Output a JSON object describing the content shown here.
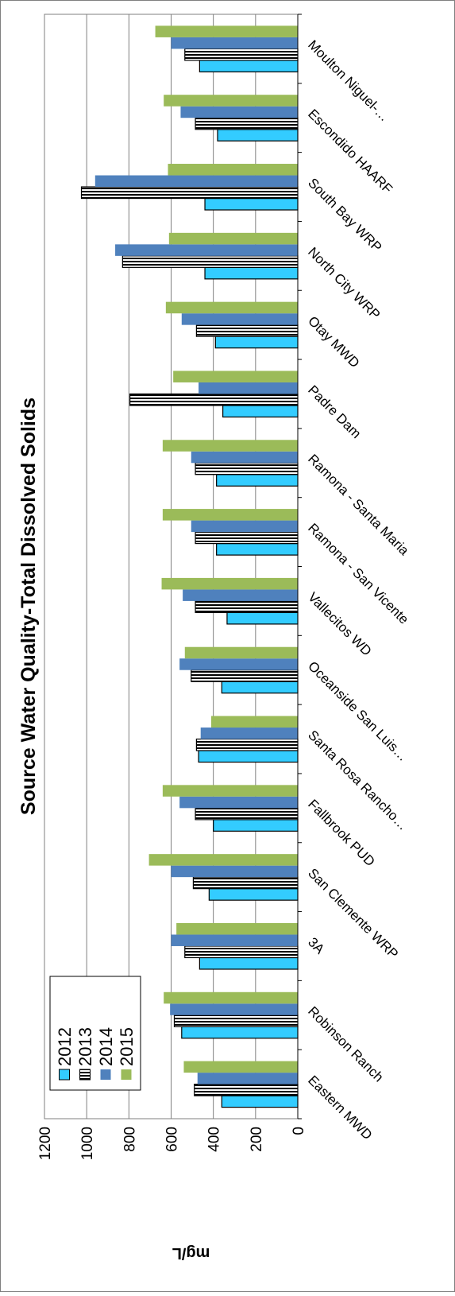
{
  "chart_data": {
    "type": "bar",
    "orientation": "rotated-90-clockwise",
    "title": "Source Water Quality-Total Dissolved Solids",
    "xlabel": "",
    "ylabel": "mg/L",
    "ylim": [
      0,
      1200
    ],
    "yticks": [
      0,
      200,
      400,
      600,
      800,
      1000,
      1200
    ],
    "grid": true,
    "legend_position": "bottom-left",
    "categories": [
      "Eastern MWD",
      "Robinson Ranch",
      "3A",
      "San Clemente WRP",
      "Fallbrook PUD",
      "Santa Rosa Rancho…",
      "Oceanside San Luis…",
      "Vallecitos WD",
      "Ramona - San Vicente",
      "Ramona - Santa Maria",
      "Padre Dam",
      "Otay MWD",
      "North City WRP",
      "South Bay WRP",
      "Escondido HAARF",
      "Moulton Niguel-…"
    ],
    "series": [
      {
        "name": "2012",
        "color": "#33ccff",
        "pattern": "solid",
        "values": [
          360,
          550,
          465,
          420,
          400,
          470,
          360,
          335,
          385,
          385,
          355,
          390,
          440,
          440,
          380,
          465
        ]
      },
      {
        "name": "2013",
        "color": "#000000",
        "pattern": "striped",
        "values": [
          490,
          585,
          535,
          495,
          485,
          480,
          505,
          485,
          485,
          485,
          795,
          480,
          830,
          1025,
          485,
          535
        ]
      },
      {
        "name": "2014",
        "color": "#4f81bd",
        "pattern": "solid",
        "values": [
          475,
          605,
          600,
          600,
          560,
          460,
          560,
          545,
          505,
          505,
          470,
          550,
          865,
          960,
          555,
          600
        ]
      },
      {
        "name": "2015",
        "color": "#9bbb59",
        "pattern": "solid",
        "values": [
          540,
          635,
          575,
          705,
          640,
          410,
          535,
          645,
          640,
          640,
          590,
          625,
          610,
          615,
          635,
          675
        ]
      }
    ]
  }
}
